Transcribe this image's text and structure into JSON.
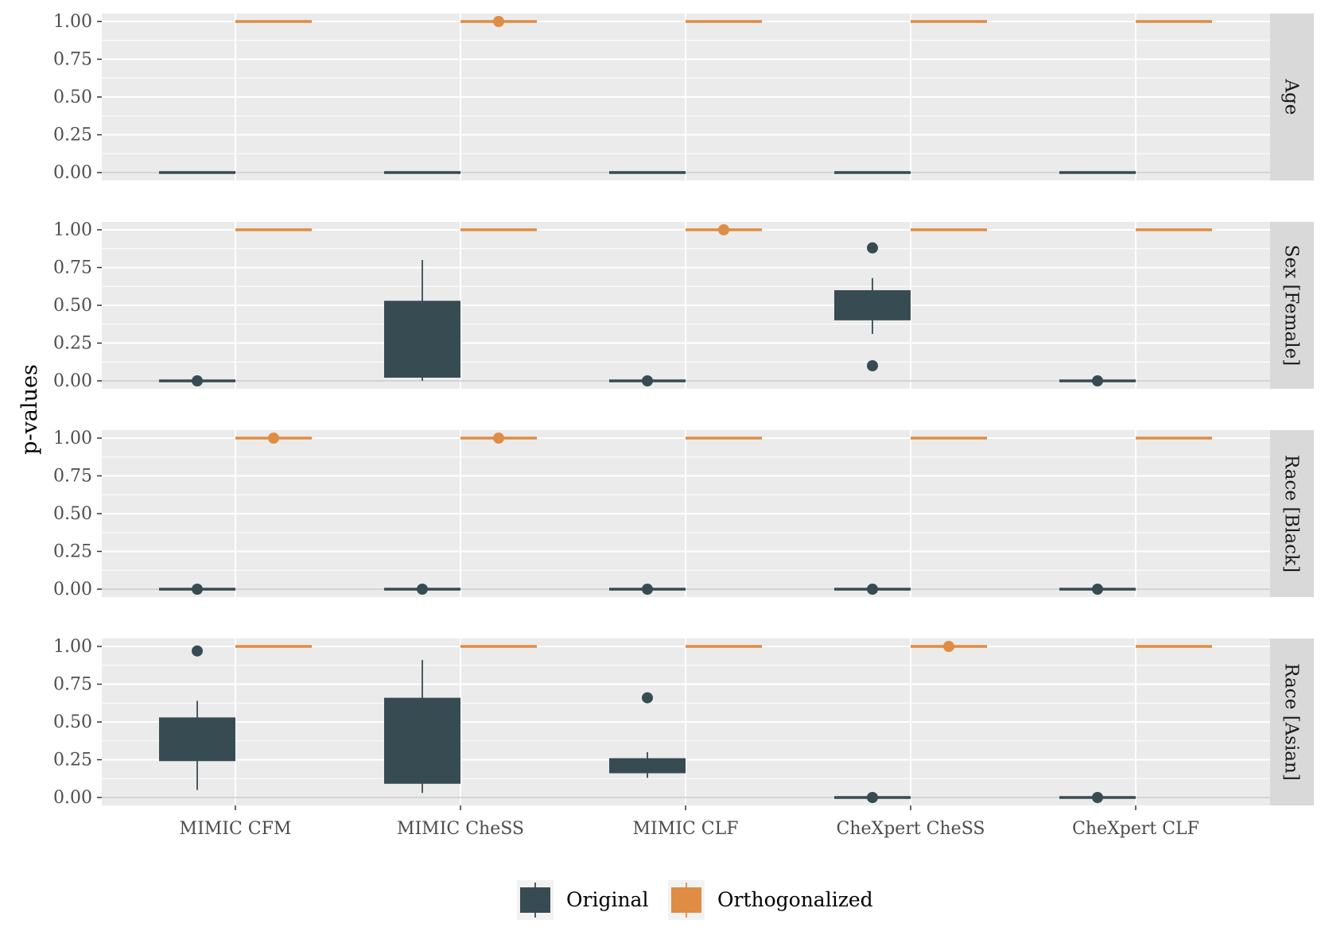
{
  "chart_data": {
    "type": "boxplot",
    "ylabel": "p-values",
    "ylim": [
      0,
      1
    ],
    "y_ticks": [
      "0.00",
      "0.25",
      "0.50",
      "0.75",
      "1.00"
    ],
    "categories": [
      "MIMIC CFM",
      "MIMIC CheSS",
      "MIMIC CLF",
      "CheXpert CheSS",
      "CheXpert CLF"
    ],
    "legend": {
      "position": "bottom",
      "entries": [
        {
          "name": "Original",
          "color": "#374b52"
        },
        {
          "name": "Orthogonalized",
          "color": "#df8c45"
        }
      ]
    },
    "facets": [
      {
        "label": "Age",
        "series": [
          {
            "name": "Original",
            "boxes": [
              {
                "q1": 0,
                "median": 0,
                "q3": 0,
                "lo": 0,
                "hi": 0,
                "outliers": []
              },
              {
                "q1": 0,
                "median": 0,
                "q3": 0,
                "lo": 0,
                "hi": 0,
                "outliers": []
              },
              {
                "q1": 0,
                "median": 0,
                "q3": 0,
                "lo": 0,
                "hi": 0,
                "outliers": []
              },
              {
                "q1": 0,
                "median": 0,
                "q3": 0,
                "lo": 0,
                "hi": 0,
                "outliers": []
              },
              {
                "q1": 0,
                "median": 0,
                "q3": 0,
                "lo": 0,
                "hi": 0,
                "outliers": []
              }
            ]
          },
          {
            "name": "Orthogonalized",
            "boxes": [
              {
                "q1": 1,
                "median": 1,
                "q3": 1,
                "lo": 1,
                "hi": 1,
                "outliers": []
              },
              {
                "q1": 1,
                "median": 1,
                "q3": 1,
                "lo": 1,
                "hi": 1,
                "outliers": [
                  1.0
                ]
              },
              {
                "q1": 1,
                "median": 1,
                "q3": 1,
                "lo": 1,
                "hi": 1,
                "outliers": []
              },
              {
                "q1": 1,
                "median": 1,
                "q3": 1,
                "lo": 1,
                "hi": 1,
                "outliers": []
              },
              {
                "q1": 1,
                "median": 1,
                "q3": 1,
                "lo": 1,
                "hi": 1,
                "outliers": []
              }
            ]
          }
        ]
      },
      {
        "label": "Sex [Female]",
        "series": [
          {
            "name": "Original",
            "boxes": [
              {
                "q1": 0,
                "median": 0,
                "q3": 0,
                "lo": 0,
                "hi": 0,
                "outliers": [
                  0.0
                ]
              },
              {
                "q1": 0.03,
                "median": 0.03,
                "q3": 0.53,
                "lo": 0.0,
                "hi": 0.8,
                "outliers": []
              },
              {
                "q1": 0,
                "median": 0,
                "q3": 0,
                "lo": 0,
                "hi": 0,
                "outliers": [
                  0.0
                ]
              },
              {
                "q1": 0.41,
                "median": 0.41,
                "q3": 0.6,
                "lo": 0.31,
                "hi": 0.68,
                "outliers": [
                  0.88,
                  0.1
                ]
              },
              {
                "q1": 0,
                "median": 0,
                "q3": 0,
                "lo": 0,
                "hi": 0,
                "outliers": [
                  0.0
                ]
              }
            ]
          },
          {
            "name": "Orthogonalized",
            "boxes": [
              {
                "q1": 1,
                "median": 1,
                "q3": 1,
                "lo": 1,
                "hi": 1,
                "outliers": []
              },
              {
                "q1": 1,
                "median": 1,
                "q3": 1,
                "lo": 1,
                "hi": 1,
                "outliers": []
              },
              {
                "q1": 1,
                "median": 1,
                "q3": 1,
                "lo": 1,
                "hi": 1,
                "outliers": [
                  1.0
                ]
              },
              {
                "q1": 1,
                "median": 1,
                "q3": 1,
                "lo": 1,
                "hi": 1,
                "outliers": []
              },
              {
                "q1": 1,
                "median": 1,
                "q3": 1,
                "lo": 1,
                "hi": 1,
                "outliers": []
              }
            ]
          }
        ]
      },
      {
        "label": "Race [Black]",
        "series": [
          {
            "name": "Original",
            "boxes": [
              {
                "q1": 0,
                "median": 0,
                "q3": 0,
                "lo": 0,
                "hi": 0,
                "outliers": [
                  0.0
                ]
              },
              {
                "q1": 0,
                "median": 0,
                "q3": 0,
                "lo": 0,
                "hi": 0,
                "outliers": [
                  0.0
                ]
              },
              {
                "q1": 0,
                "median": 0,
                "q3": 0,
                "lo": 0,
                "hi": 0,
                "outliers": [
                  0.0
                ]
              },
              {
                "q1": 0,
                "median": 0,
                "q3": 0,
                "lo": 0,
                "hi": 0,
                "outliers": [
                  0.0
                ]
              },
              {
                "q1": 0,
                "median": 0,
                "q3": 0,
                "lo": 0,
                "hi": 0,
                "outliers": [
                  0.0
                ]
              }
            ]
          },
          {
            "name": "Orthogonalized",
            "boxes": [
              {
                "q1": 1,
                "median": 1,
                "q3": 1,
                "lo": 1,
                "hi": 1,
                "outliers": [
                  1.0
                ]
              },
              {
                "q1": 1,
                "median": 1,
                "q3": 1,
                "lo": 1,
                "hi": 1,
                "outliers": [
                  1.0
                ]
              },
              {
                "q1": 1,
                "median": 1,
                "q3": 1,
                "lo": 1,
                "hi": 1,
                "outliers": []
              },
              {
                "q1": 1,
                "median": 1,
                "q3": 1,
                "lo": 1,
                "hi": 1,
                "outliers": []
              },
              {
                "q1": 1,
                "median": 1,
                "q3": 1,
                "lo": 1,
                "hi": 1,
                "outliers": []
              }
            ]
          }
        ]
      },
      {
        "label": "Race [Asian]",
        "series": [
          {
            "name": "Original",
            "boxes": [
              {
                "q1": 0.25,
                "median": 0.25,
                "q3": 0.53,
                "lo": 0.05,
                "hi": 0.64,
                "outliers": [
                  0.97
                ]
              },
              {
                "q1": 0.1,
                "median": 0.1,
                "q3": 0.66,
                "lo": 0.03,
                "hi": 0.91,
                "outliers": []
              },
              {
                "q1": 0.17,
                "median": 0.17,
                "q3": 0.26,
                "lo": 0.13,
                "hi": 0.3,
                "outliers": [
                  0.66
                ]
              },
              {
                "q1": 0,
                "median": 0,
                "q3": 0,
                "lo": 0,
                "hi": 0,
                "outliers": [
                  0.0
                ]
              },
              {
                "q1": 0,
                "median": 0,
                "q3": 0,
                "lo": 0,
                "hi": 0,
                "outliers": [
                  0.0
                ]
              }
            ]
          },
          {
            "name": "Orthogonalized",
            "boxes": [
              {
                "q1": 1,
                "median": 1,
                "q3": 1,
                "lo": 1,
                "hi": 1,
                "outliers": []
              },
              {
                "q1": 1,
                "median": 1,
                "q3": 1,
                "lo": 1,
                "hi": 1,
                "outliers": []
              },
              {
                "q1": 1,
                "median": 1,
                "q3": 1,
                "lo": 1,
                "hi": 1,
                "outliers": []
              },
              {
                "q1": 1,
                "median": 1,
                "q3": 1,
                "lo": 1,
                "hi": 1,
                "outliers": [
                  1.0
                ]
              },
              {
                "q1": 1,
                "median": 1,
                "q3": 1,
                "lo": 1,
                "hi": 1,
                "outliers": []
              }
            ]
          }
        ]
      }
    ]
  }
}
